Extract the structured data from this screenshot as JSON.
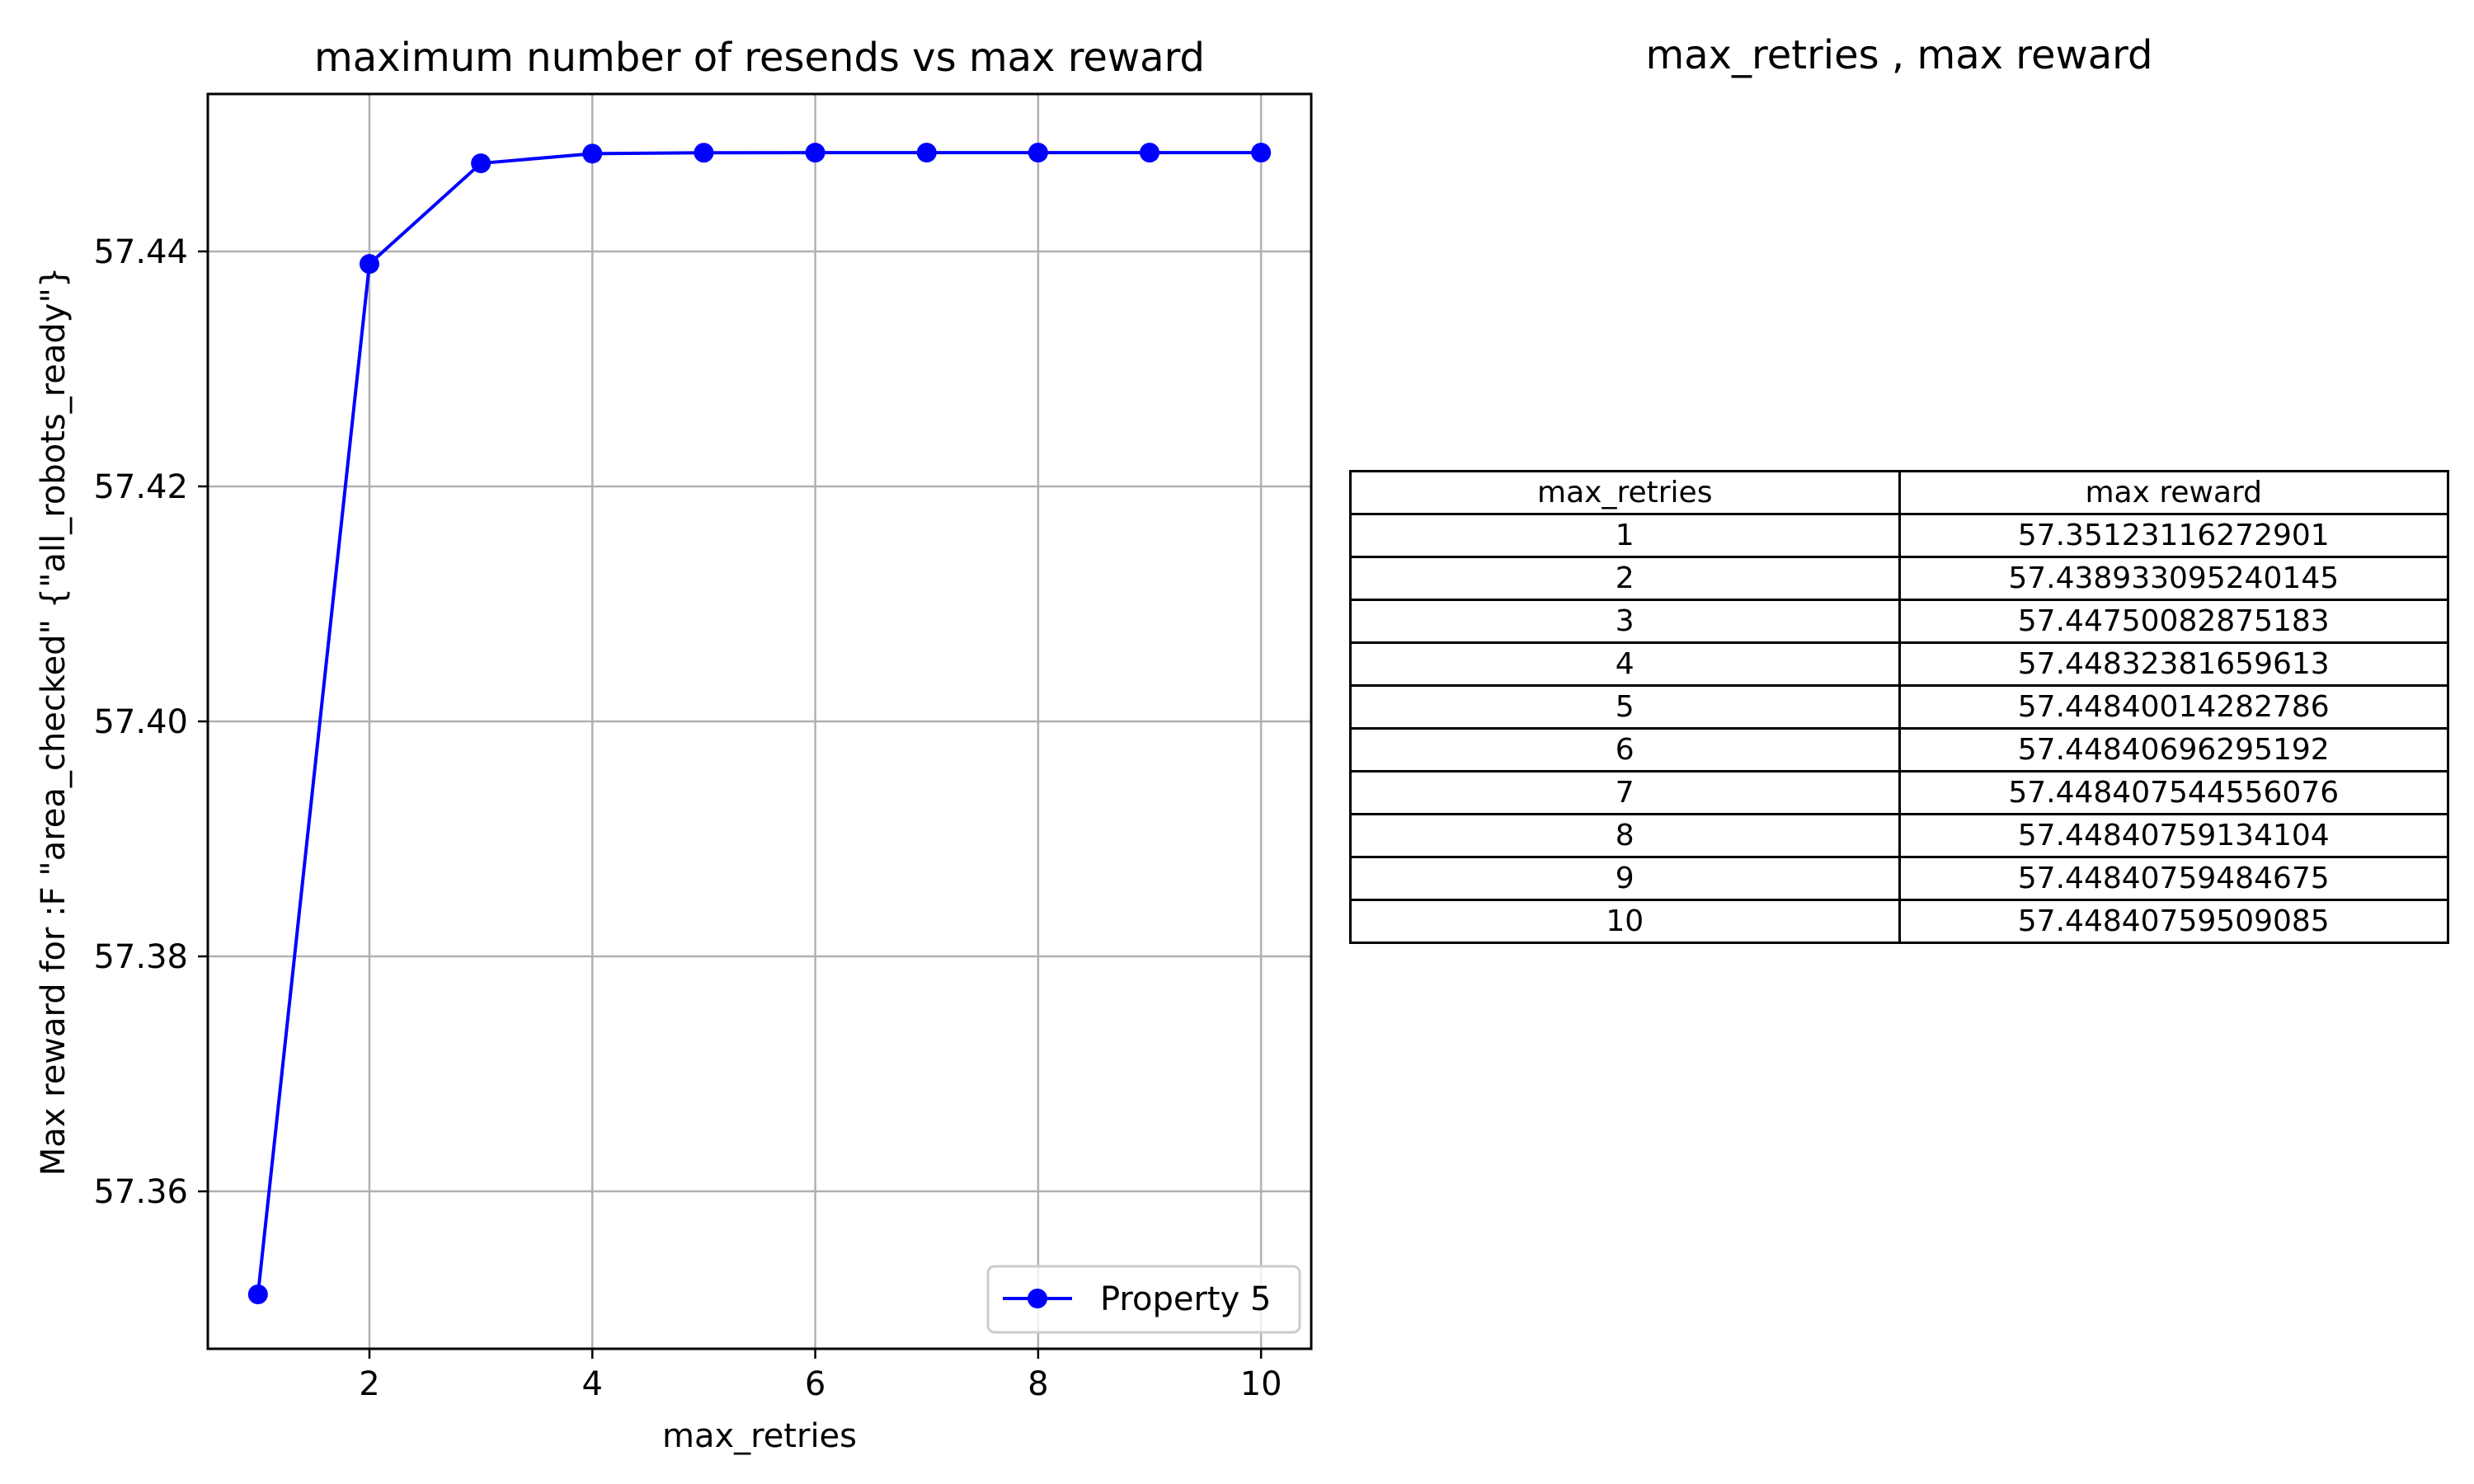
{
  "chart_data": [
    {
      "type": "line",
      "title": "maximum number of resends vs max reward",
      "xlabel": "max_retries",
      "ylabel": "Max reward for :F \"area_checked\" {\"all_robots_ready\"}",
      "x": [
        1,
        2,
        3,
        4,
        5,
        6,
        7,
        8,
        9,
        10
      ],
      "series": [
        {
          "name": "Property 5",
          "color": "#0000ff",
          "marker": "circle",
          "values": [
            57.35123116272901,
            57.438933095240145,
            57.44750082875183,
            57.44832381659613,
            57.44840014282786,
            57.44840696295192,
            57.448407544556076,
            57.44840759134104,
            57.44840759484675,
            57.44840759509085
          ]
        }
      ],
      "xlim": [
        0.55,
        10.45
      ],
      "ylim": [
        57.3466,
        57.4534
      ],
      "xticks": [
        "2",
        "4",
        "6",
        "8",
        "10"
      ],
      "yticks": [
        "57.36",
        "57.38",
        "57.40",
        "57.42",
        "57.44"
      ],
      "grid": true,
      "legend": "lower-right"
    },
    {
      "type": "table",
      "title": "max_retries , max reward",
      "columns": [
        "max_retries",
        "max reward"
      ],
      "rows": [
        [
          "1",
          "57.35123116272901"
        ],
        [
          "2",
          "57.438933095240145"
        ],
        [
          "3",
          "57.44750082875183"
        ],
        [
          "4",
          "57.44832381659613"
        ],
        [
          "5",
          "57.44840014282786"
        ],
        [
          "6",
          "57.44840696295192"
        ],
        [
          "7",
          "57.448407544556076"
        ],
        [
          "8",
          "57.44840759134104"
        ],
        [
          "9",
          "57.44840759484675"
        ],
        [
          "10",
          "57.44840759509085"
        ]
      ]
    }
  ]
}
